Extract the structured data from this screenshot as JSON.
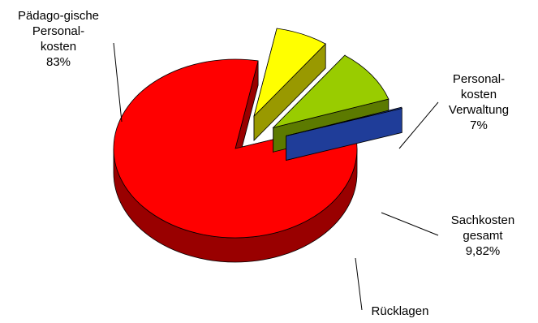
{
  "chart_data": {
    "type": "pie",
    "title": "",
    "slices": [
      {
        "label_lines": [
          "Pädago-gische",
          "Personal-",
          "kosten"
        ],
        "value_text": "83%",
        "value": 83,
        "color": "#ff0000",
        "side_color": "#990000",
        "exploded": false
      },
      {
        "label_lines": [
          "Personal-",
          "kosten",
          "Verwaltung"
        ],
        "value_text": "7%",
        "value": 7,
        "color": "#ffff00",
        "side_color": "#999900",
        "exploded": true
      },
      {
        "label_lines": [
          "Sachkosten",
          "gesamt"
        ],
        "value_text": "9,82%",
        "value": 9.82,
        "color": "#99cc00",
        "side_color": "#5c7a00",
        "exploded": true
      },
      {
        "label_lines": [
          "Rücklagen"
        ],
        "value_text": "",
        "value": 0.18,
        "color": "#3366ff",
        "side_color": "#1f3d99",
        "exploded": true
      }
    ],
    "style": "3d-exploded",
    "legend": "none"
  }
}
